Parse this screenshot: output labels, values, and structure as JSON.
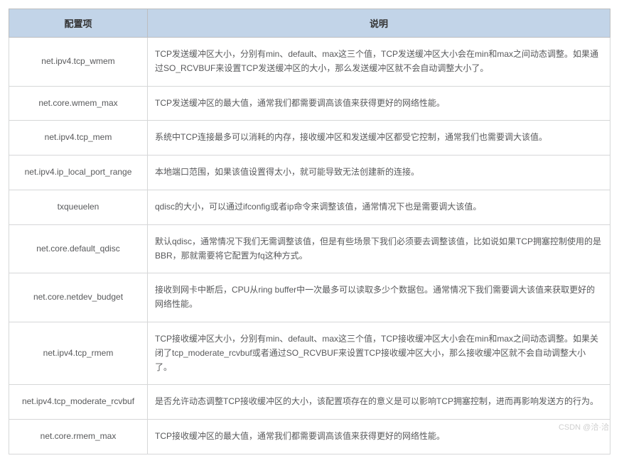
{
  "table": {
    "headers": {
      "config": "配置项",
      "description": "说明"
    },
    "rows": [
      {
        "config": "net.ipv4.tcp_wmem",
        "description": "TCP发送缓冲区大小，分别有min、default、max这三个值，TCP发送缓冲区大小会在min和max之间动态调整。如果通过SO_RCVBUF来设置TCP发送缓冲区的大小，那么发送缓冲区就不会自动调整大小了。"
      },
      {
        "config": "net.core.wmem_max",
        "description": "TCP发送缓冲区的最大值，通常我们都需要调高该值来获得更好的网络性能。"
      },
      {
        "config": "net.ipv4.tcp_mem",
        "description": "系统中TCP连接最多可以消耗的内存，接收缓冲区和发送缓冲区都受它控制，通常我们也需要调大该值。"
      },
      {
        "config": "net.ipv4.ip_local_port_range",
        "description": "本地端口范围，如果该值设置得太小，就可能导致无法创建新的连接。"
      },
      {
        "config": "txqueuelen",
        "description": "qdisc的大小，可以通过ifconfig或者ip命令来调整该值，通常情况下也是需要调大该值。"
      },
      {
        "config": "net.core.default_qdisc",
        "description": "默认qdisc，通常情况下我们无需调整该值，但是有些场景下我们必须要去调整该值，比如说如果TCP拥塞控制使用的是BBR，那就需要将它配置为fq这种方式。"
      },
      {
        "config": "net.core.netdev_budget",
        "description": "接收到网卡中断后，CPU从ring buffer中一次最多可以读取多少个数据包。通常情况下我们需要调大该值来获取更好的网络性能。"
      },
      {
        "config": "net.ipv4.tcp_rmem",
        "description": "TCP接收缓冲区大小，分别有min、default、max这三个值，TCP接收缓冲区大小会在min和max之间动态调整。如果关闭了tcp_moderate_rcvbuf或者通过SO_RCVBUF来设置TCP接收缓冲区大小，那么接收缓冲区就不会自动调整大小了。"
      },
      {
        "config": "net.ipv4.tcp_moderate_rcvbuf",
        "description": "是否允许动态调整TCP接收缓冲区的大小，该配置项存在的意义是可以影响TCP拥塞控制，进而再影响发送方的行为。"
      },
      {
        "config": "net.core.rmem_max",
        "description": "TCP接收缓冲区的最大值，通常我们都需要调高该值来获得更好的网络性能。"
      }
    ]
  },
  "watermark": "CSDN @洽·洽"
}
